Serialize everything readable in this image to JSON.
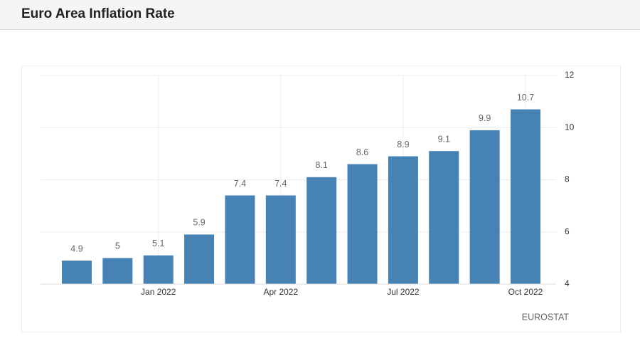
{
  "chart_data": {
    "type": "bar",
    "title": "Euro Area Inflation Rate",
    "source": "EUROSTAT",
    "categories": [
      null,
      null,
      "Jan 2022",
      null,
      null,
      "Apr 2022",
      null,
      null,
      "Jul 2022",
      null,
      null,
      "Oct 2022"
    ],
    "values": [
      4.9,
      5,
      5.1,
      5.9,
      7.4,
      7.4,
      8.1,
      8.6,
      8.9,
      9.1,
      9.9,
      10.7
    ],
    "color": "#4682b4",
    "ylim": [
      4,
      12
    ],
    "yticks": [
      4,
      6,
      8,
      10,
      12
    ],
    "grid": true,
    "y_axis_side": "right"
  }
}
